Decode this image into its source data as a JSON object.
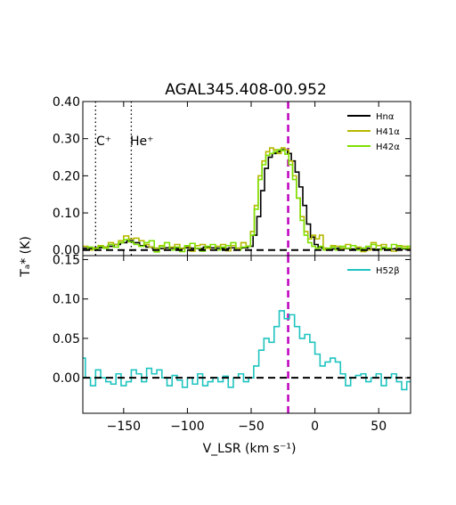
{
  "chart_data": [
    {
      "type": "line",
      "title": "AGAL345.408-00.952",
      "xlabel": "V_LSR (km s⁻¹)",
      "ylabel": "Tₐ* (K)",
      "xlim": [
        -182,
        75
      ],
      "ylim": [
        -0.015,
        0.4
      ],
      "x_ticks": [
        -150,
        -100,
        -50,
        0,
        50
      ],
      "x_tick_labels": [
        "−150",
        "−100",
        "−50",
        "0",
        "50"
      ],
      "y_ticks": [
        0.0,
        0.1,
        0.2,
        0.3,
        0.4
      ],
      "y_tick_labels": [
        "0.00",
        "0.10",
        "0.20",
        "0.30",
        "0.40"
      ],
      "legend_position": "top-right",
      "vlines": [
        {
          "label": "C⁺",
          "x": -172,
          "style": "dotted",
          "color": "#000000"
        },
        {
          "label": "He⁺",
          "x": -144,
          "style": "dotted",
          "color": "#000000"
        },
        {
          "label": "",
          "x": -21,
          "style": "dashed",
          "color": "#bf00bf"
        }
      ],
      "hline": {
        "y": 0,
        "style": "dashed",
        "color": "#000000"
      },
      "series": [
        {
          "name": "Hnα",
          "color": "#000000",
          "x": [
            -180,
            -175,
            -170,
            -165,
            -160,
            -155,
            -150,
            -145,
            -140,
            -135,
            -130,
            -125,
            -120,
            -115,
            -110,
            -105,
            -100,
            -95,
            -90,
            -85,
            -80,
            -75,
            -70,
            -65,
            -60,
            -55,
            -50,
            -47,
            -44,
            -41,
            -38,
            -35,
            -32,
            -29,
            -26,
            -23,
            -20,
            -17,
            -14,
            -11,
            -8,
            -5,
            -2,
            1,
            4,
            7,
            10,
            15,
            20,
            25,
            30,
            35,
            40,
            45,
            50,
            55,
            60,
            65,
            70,
            75
          ],
          "y": [
            0.005,
            0.004,
            0.006,
            0.008,
            0.01,
            0.015,
            0.02,
            0.025,
            0.02,
            0.012,
            0.008,
            0.005,
            0.004,
            0.006,
            0.005,
            0.004,
            0.006,
            0.005,
            0.004,
            0.008,
            0.006,
            0.005,
            0.004,
            0.006,
            0.005,
            0.006,
            0.01,
            0.04,
            0.09,
            0.16,
            0.22,
            0.25,
            0.26,
            0.265,
            0.27,
            0.27,
            0.26,
            0.24,
            0.21,
            0.17,
            0.12,
            0.07,
            0.035,
            0.015,
            0.008,
            0.005,
            0.004,
            0.003,
            0.005,
            0.004,
            0.003,
            0.004,
            0.005,
            0.003,
            0.002,
            0.004,
            0.003,
            0.004,
            0.003,
            0.004
          ]
        },
        {
          "name": "H41α",
          "color": "#b5b800",
          "x": [
            -180,
            -176,
            -172,
            -168,
            -164,
            -160,
            -156,
            -152,
            -148,
            -144,
            -140,
            -136,
            -132,
            -128,
            -124,
            -120,
            -116,
            -112,
            -108,
            -104,
            -100,
            -96,
            -92,
            -88,
            -84,
            -80,
            -76,
            -72,
            -68,
            -64,
            -60,
            -56,
            -52,
            -49,
            -46,
            -43,
            -40,
            -37,
            -34,
            -31,
            -28,
            -25,
            -22,
            -19,
            -16,
            -13,
            -10,
            -7,
            -4,
            -1,
            2,
            5,
            8,
            11,
            14,
            18,
            22,
            26,
            30,
            34,
            38,
            42,
            46,
            50,
            54,
            58,
            62,
            66,
            70,
            75
          ],
          "y": [
            0.01,
            0.0,
            0.005,
            0.012,
            0.008,
            0.02,
            0.015,
            0.025,
            0.038,
            0.03,
            0.032,
            0.025,
            0.015,
            0.008,
            0.005,
            0.012,
            0.0,
            0.008,
            0.015,
            0.005,
            0.01,
            -0.003,
            0.012,
            0.015,
            0.005,
            0.0,
            0.01,
            0.015,
            -0.002,
            0.012,
            0.005,
            0.02,
            0.01,
            0.05,
            0.12,
            0.2,
            0.24,
            0.265,
            0.275,
            0.27,
            0.26,
            0.275,
            0.27,
            0.24,
            0.2,
            0.14,
            0.09,
            0.05,
            0.03,
            0.04,
            0.03,
            0.04,
            0.005,
            0.0,
            0.012,
            0.01,
            0.005,
            0.015,
            0.0,
            0.008,
            -0.004,
            0.0,
            0.02,
            0.012,
            0.015,
            0.0,
            -0.003,
            0.012,
            0.01,
            0.005
          ]
        },
        {
          "name": "H42α",
          "color": "#7fe000",
          "x": [
            -180,
            -176,
            -172,
            -168,
            -164,
            -160,
            -156,
            -152,
            -148,
            -144,
            -140,
            -136,
            -132,
            -128,
            -124,
            -120,
            -116,
            -112,
            -108,
            -104,
            -100,
            -96,
            -92,
            -88,
            -84,
            -80,
            -76,
            -72,
            -68,
            -64,
            -60,
            -56,
            -52,
            -49,
            -46,
            -43,
            -40,
            -37,
            -34,
            -31,
            -28,
            -25,
            -22,
            -19,
            -16,
            -13,
            -10,
            -7,
            -4,
            -1,
            2,
            5,
            8,
            11,
            14,
            18,
            22,
            26,
            30,
            34,
            38,
            42,
            46,
            50,
            54,
            58,
            62,
            66,
            70,
            75
          ],
          "y": [
            0.0,
            0.008,
            0.003,
            0.01,
            0.005,
            0.015,
            0.008,
            0.02,
            0.028,
            0.022,
            0.015,
            0.01,
            0.02,
            0.025,
            -0.005,
            0.01,
            0.02,
            0.0,
            0.008,
            -0.004,
            0.012,
            0.018,
            0.005,
            -0.003,
            0.01,
            0.015,
            0.0,
            0.008,
            0.012,
            0.02,
            0.0,
            0.008,
            0.01,
            0.04,
            0.11,
            0.19,
            0.23,
            0.255,
            0.26,
            0.265,
            0.27,
            0.268,
            0.258,
            0.23,
            0.19,
            0.14,
            0.08,
            0.04,
            0.02,
            0.01,
            0.005,
            0.01,
            0.0,
            0.005,
            0.008,
            0.0,
            0.01,
            0.005,
            0.012,
            0.0,
            0.005,
            0.01,
            0.015,
            0.0,
            0.008,
            0.005,
            0.015,
            0.01,
            0.005,
            0.01
          ]
        }
      ]
    },
    {
      "type": "line",
      "xlim": [
        -182,
        75
      ],
      "ylim": [
        -0.045,
        0.155
      ],
      "y_ticks": [
        0.0,
        0.05,
        0.1,
        0.15
      ],
      "y_tick_labels": [
        "0.00",
        "0.05",
        "0.10",
        "0.15"
      ],
      "legend_position": "top-right",
      "vlines": [
        {
          "label": "",
          "x": -21,
          "style": "dashed",
          "color": "#bf00bf"
        }
      ],
      "hline": {
        "y": 0,
        "style": "dashed",
        "color": "#000000"
      },
      "series": [
        {
          "name": "H52β",
          "color": "#1fc4c0",
          "x": [
            -182,
            -178,
            -174,
            -170,
            -166,
            -162,
            -158,
            -154,
            -150,
            -146,
            -142,
            -138,
            -134,
            -130,
            -126,
            -122,
            -118,
            -114,
            -110,
            -106,
            -102,
            -98,
            -94,
            -90,
            -86,
            -82,
            -78,
            -74,
            -70,
            -66,
            -62,
            -58,
            -54,
            -50,
            -46,
            -42,
            -38,
            -34,
            -30,
            -26,
            -22,
            -18,
            -14,
            -10,
            -6,
            -2,
            2,
            6,
            10,
            14,
            18,
            22,
            26,
            30,
            34,
            38,
            42,
            46,
            50,
            54,
            58,
            62,
            66,
            70,
            74
          ],
          "y": [
            0.025,
            0.0,
            -0.01,
            0.01,
            0.0,
            -0.005,
            -0.008,
            0.005,
            -0.01,
            -0.005,
            0.01,
            0.005,
            -0.005,
            0.012,
            0.005,
            0.01,
            0.0,
            -0.01,
            0.003,
            -0.003,
            -0.012,
            0.0,
            -0.008,
            0.005,
            -0.01,
            -0.005,
            0.0,
            -0.005,
            0.002,
            -0.012,
            0.0,
            0.005,
            -0.005,
            0.0,
            0.015,
            0.035,
            0.05,
            0.045,
            0.065,
            0.085,
            0.075,
            0.08,
            0.065,
            0.05,
            0.055,
            0.045,
            0.03,
            0.015,
            0.02,
            0.025,
            0.02,
            0.005,
            -0.01,
            0.0,
            0.003,
            0.005,
            -0.005,
            0.0,
            0.005,
            -0.01,
            0.0,
            0.005,
            -0.005,
            -0.015,
            -0.005
          ]
        }
      ]
    }
  ]
}
